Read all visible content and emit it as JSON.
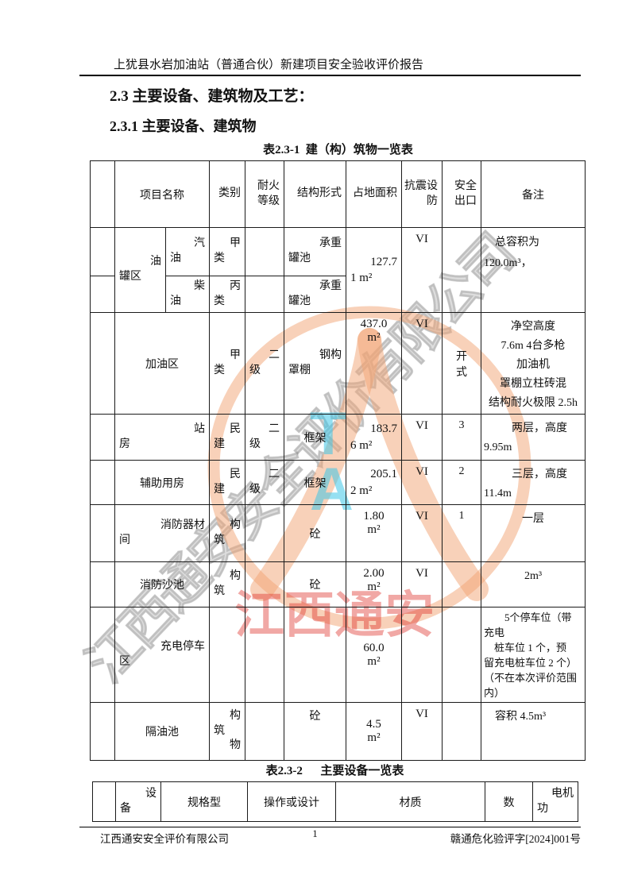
{
  "header": {
    "title": "上犹县水岩加油站（普通合伙）新建项目安全验收评价报告"
  },
  "headings": {
    "section": "2.3 主要设备、建筑物及工艺：",
    "subsection": "2.3.1 主要设备、建筑物"
  },
  "watermarks": {
    "diagonal_text": "江西通安安全评价有限公司",
    "red_text": "江西通安",
    "logo_letters": "TA"
  },
  "table1": {
    "title": "表2.3-1  建（构）筑物一览表",
    "headers": {
      "seq": "",
      "name": "项目名称",
      "category": "类别",
      "fire_rating": "耐火等级",
      "structure": "结构形式",
      "area": "占地面积",
      "seismic": "抗震设防",
      "exits": "安全出口",
      "notes": "备注"
    },
    "rows": [
      {
        "group_name": "油\n罐区",
        "name": "汽\n油",
        "category": "甲\n类",
        "fire_rating": "",
        "structure": "承重\n罐池",
        "area": "127.7\n1 m²",
        "seismic": "VI",
        "exits": "",
        "notes": "总容积为\n120.0m³，"
      },
      {
        "name": "柴\n油",
        "category": "丙\n类",
        "fire_rating": "",
        "structure": "承重\n罐池"
      },
      {
        "name": "加油区",
        "category": "甲\n类",
        "fire_rating": "二\n级",
        "structure": "钢构\n罩棚",
        "area": "437.0\nm²",
        "seismic": "VI",
        "exits": "开\n式",
        "notes": "净空高度\n7.6m 4台多枪\n加油机\n罩棚立柱砖混\n结构耐火极限 2.5h"
      },
      {
        "name": "站\n房",
        "category": "民\n建",
        "fire_rating": "二\n级",
        "structure": "框架",
        "area": "183.7\n6 m²",
        "seismic": "VI",
        "exits": "3",
        "notes": "两层，高度\n9.95m"
      },
      {
        "name": "辅助用房",
        "category": "民\n建",
        "fire_rating": "二\n级",
        "structure": "框架",
        "area": "205.1\n2 m²",
        "seismic": "VI",
        "exits": "2",
        "notes": "三层，高度\n11.4m"
      },
      {
        "name": "消防器材\n间",
        "category": "构\n筑",
        "fire_rating": "",
        "structure": "砼",
        "area": "1.80\nm²",
        "seismic": "VI",
        "exits": "1",
        "notes": "一层"
      },
      {
        "name": "消防沙池",
        "category": "构\n筑",
        "fire_rating": "",
        "structure": "砼",
        "area": "2.00\nm²",
        "seismic": "VI",
        "exits": "",
        "notes": "2m³"
      },
      {
        "name": "充电停车\n区",
        "category": "",
        "fire_rating": "",
        "structure": "",
        "area": "60.0\nm²",
        "seismic": "",
        "exits": "",
        "notes": "　　5个停车位（带\n充电\n　桩车位 1 个，预\n留充电桩车位 2 个）\n（不在本次评价范围\n内）"
      },
      {
        "name": "隔油池",
        "category": "构\n筑\n物",
        "fire_rating": "",
        "structure": "砼",
        "area": "4.5\nm²",
        "seismic": "VI",
        "exits": "",
        "notes": "容积  4.5m³"
      }
    ]
  },
  "table2": {
    "title": "表2.3-2　  主要设备一览表",
    "headers": {
      "seq": "",
      "device": "设\n备",
      "spec": "规格型",
      "operation": "操作或设计",
      "material": "材质",
      "quantity": "数",
      "motor": "电机\n功"
    }
  },
  "footer": {
    "company": "江西通安安全评价有限公司",
    "page_number": "1",
    "doc_number": "赣通危化验评字[2024]001号"
  }
}
